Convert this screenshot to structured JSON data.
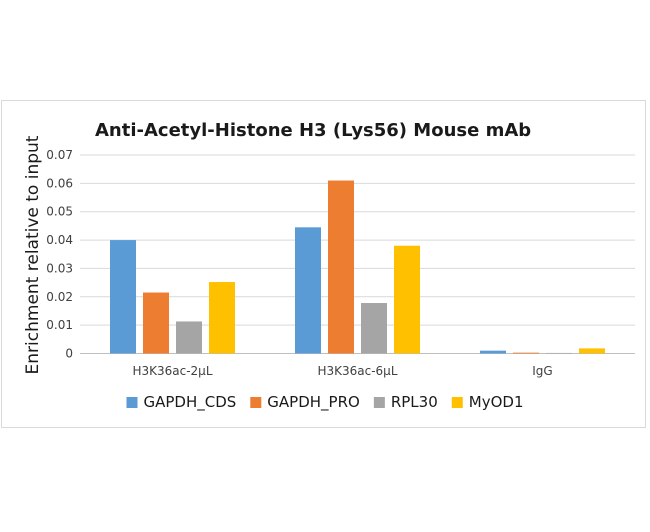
{
  "chart_data": {
    "type": "bar",
    "title": "Anti-Acetyl-Histone H3 (Lys56) Mouse mAb",
    "xlabel": "",
    "ylabel": "Enrichment relative to input",
    "categories": [
      "H3K36ac-2μL",
      "H3K36ac-6μL",
      "IgG"
    ],
    "ylim": [
      0,
      0.07
    ],
    "yticks": [
      "0",
      "0.01",
      "0.02",
      "0.03",
      "0.04",
      "0.05",
      "0.06",
      "0.07"
    ],
    "grid": true,
    "legend_position": "bottom",
    "series": [
      {
        "name": "GAPDH_CDS",
        "color": "#5b9bd5",
        "values": [
          0.04,
          0.0445,
          0.001
        ]
      },
      {
        "name": "GAPDH_PRO",
        "color": "#ed7d31",
        "values": [
          0.0215,
          0.061,
          0.0003
        ]
      },
      {
        "name": "RPL30",
        "color": "#a5a5a5",
        "values": [
          0.0113,
          0.0178,
          0.0002
        ]
      },
      {
        "name": "MyOD1",
        "color": "#ffc000",
        "values": [
          0.0252,
          0.038,
          0.0018
        ]
      }
    ]
  }
}
